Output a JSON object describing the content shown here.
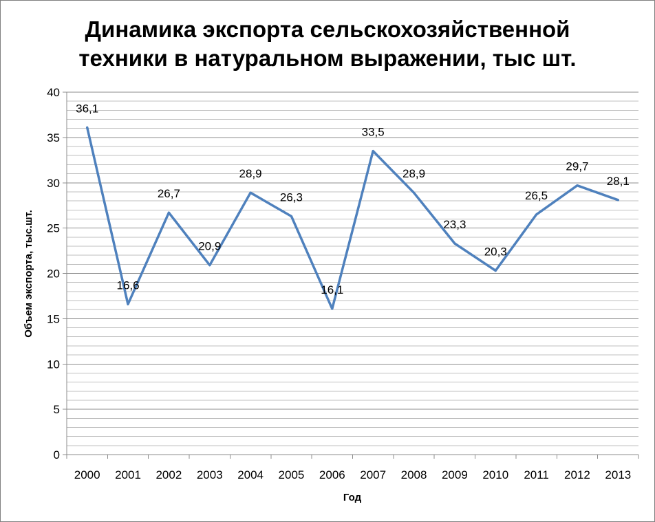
{
  "chart_data": {
    "type": "line",
    "title_lines": [
      "Динамика экспорта сельскохозяйственной",
      "техники в натуральном выражении, тыс шт."
    ],
    "xlabel": "Год",
    "ylabel": "Объем экспорта, тыс.шт.",
    "categories": [
      "2000",
      "2001",
      "2002",
      "2003",
      "2004",
      "2005",
      "2006",
      "2007",
      "2008",
      "2009",
      "2010",
      "2011",
      "2012",
      "2013"
    ],
    "values": [
      36.1,
      16.6,
      26.7,
      20.9,
      28.9,
      26.3,
      16.1,
      33.5,
      28.9,
      23.3,
      20.3,
      26.5,
      29.7,
      28.1
    ],
    "data_labels": [
      "36,1",
      "16,6",
      "26,7",
      "20,9",
      "28,9",
      "26,3",
      "16,1",
      "33,5",
      "28,9",
      "23,3",
      "20,3",
      "26,5",
      "29,7",
      "28,1"
    ],
    "yticks": [
      "0",
      "5",
      "10",
      "15",
      "20",
      "25",
      "30",
      "35",
      "40"
    ],
    "ylim": [
      0,
      40
    ],
    "grid": "horizontal minor lines every 1",
    "line_color": "#4f81bd"
  }
}
